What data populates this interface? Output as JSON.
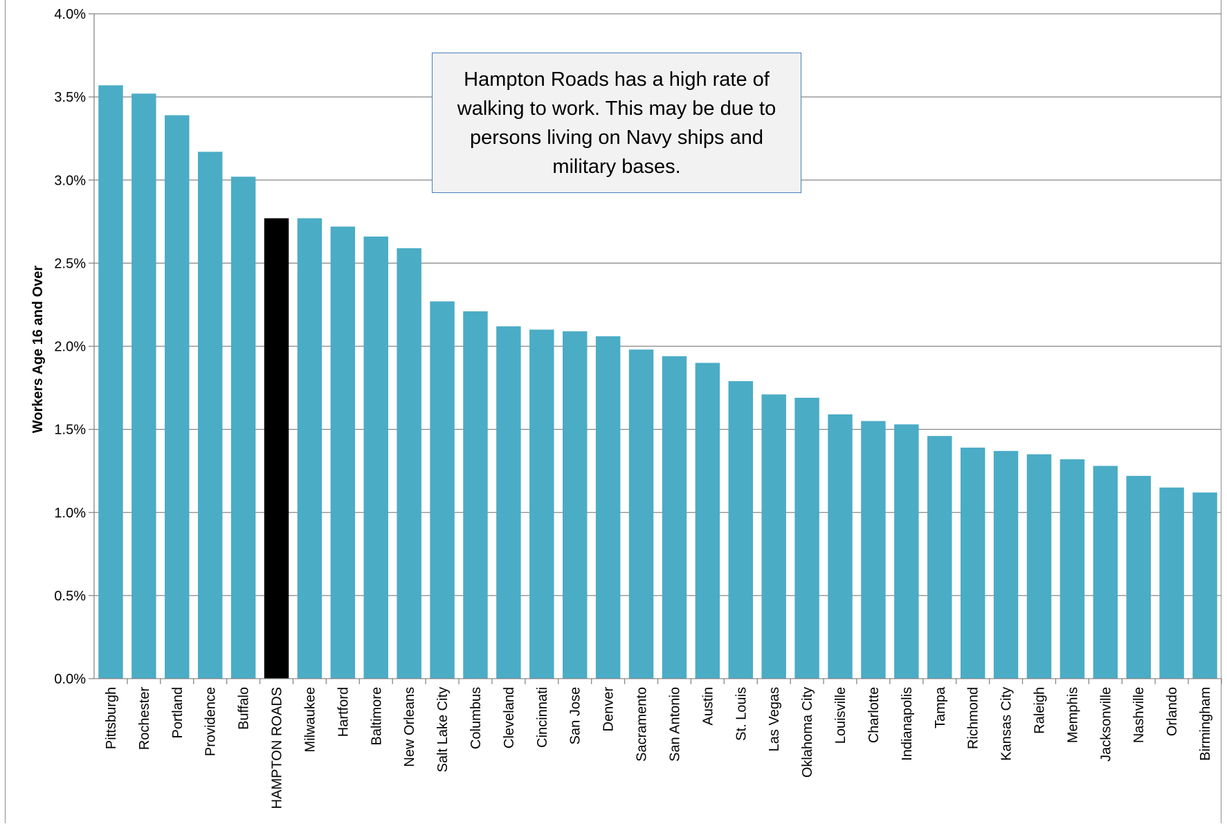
{
  "annotation": "Hampton Roads has a high rate of walking to work.  This may be due to persons living on Navy ships and military bases.",
  "colors": {
    "bar": "#4BACC6",
    "highlight": "#000000",
    "grid": "#868686"
  },
  "chart_data": {
    "type": "bar",
    "title": "",
    "xlabel": "",
    "ylabel": "Workers Age 16 and Over",
    "ylim": [
      0,
      0.04
    ],
    "yticks": [
      "0.0%",
      "0.5%",
      "1.0%",
      "1.5%",
      "2.0%",
      "2.5%",
      "3.0%",
      "3.5%",
      "4.0%"
    ],
    "grid": true,
    "highlight_category": "HAMPTON ROADS",
    "categories": [
      "Pittsburgh",
      "Rochester",
      "Portland",
      "Providence",
      "Buffalo",
      "HAMPTON ROADS",
      "Milwaukee",
      "Hartford",
      "Baltimore",
      "New Orleans",
      "Salt Lake City",
      "Columbus",
      "Cleveland",
      "Cincinnati",
      "San Jose",
      "Denver",
      "Sacramento",
      "San Antonio",
      "Austin",
      "St. Louis",
      "Las Vegas",
      "Oklahoma City",
      "Louisville",
      "Charlotte",
      "Indianapolis",
      "Tampa",
      "Richmond",
      "Kansas City",
      "Raleigh",
      "Memphis",
      "Jacksonville",
      "Nashville",
      "Orlando",
      "Birmingham"
    ],
    "values": [
      0.0357,
      0.0352,
      0.0339,
      0.0317,
      0.0302,
      0.0277,
      0.0277,
      0.0272,
      0.0266,
      0.0259,
      0.0227,
      0.0221,
      0.0212,
      0.021,
      0.0209,
      0.0206,
      0.0198,
      0.0194,
      0.019,
      0.0179,
      0.0171,
      0.0169,
      0.0159,
      0.0155,
      0.0153,
      0.0146,
      0.0139,
      0.0137,
      0.0135,
      0.0132,
      0.0128,
      0.0122,
      0.0115,
      0.0112
    ]
  }
}
